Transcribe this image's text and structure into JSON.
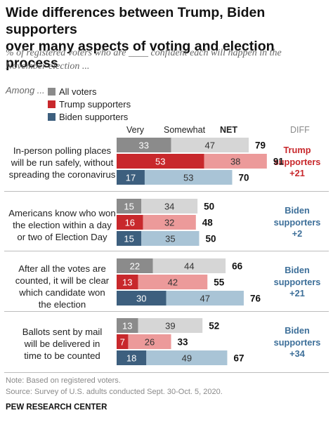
{
  "title": "Wide differences between Trump, Biden supporters\nover many aspects of voting and election process",
  "subtitle": "% of registered voters who are ____ confident each will happen in the\nNovember election ...",
  "legend": {
    "prefix": "Among ...",
    "items": [
      {
        "label": "All voters",
        "color": "#8b8b8b"
      },
      {
        "label": "Trump supporters",
        "color": "#c8282c"
      },
      {
        "label": "Biden supporters",
        "color": "#3d5f7e"
      }
    ]
  },
  "columns": {
    "very": "Very",
    "somewhat": "Somewhat",
    "net": "NET",
    "diff": "DIFF"
  },
  "colors": {
    "all_very": "#8b8b8b",
    "all_somewhat": "#d6d6d6",
    "trump_very": "#c8282c",
    "trump_somewhat": "#ec9a9a",
    "biden_very": "#3d5f7e",
    "biden_somewhat": "#a9c4d6",
    "trump_diff": "#c8282c",
    "biden_diff": "#3d6f99"
  },
  "chart_data": {
    "type": "bar",
    "stacked": true,
    "orientation": "horizontal",
    "value_unit": "%",
    "series": [
      {
        "name": "Very",
        "group_values": {
          "All voters": [
            33,
            15,
            22,
            13
          ],
          "Trump supporters": [
            53,
            16,
            13,
            7
          ],
          "Biden supporters": [
            17,
            15,
            30,
            18
          ]
        }
      },
      {
        "name": "Somewhat",
        "group_values": {
          "All voters": [
            47,
            34,
            44,
            39
          ],
          "Trump supporters": [
            38,
            32,
            42,
            26
          ],
          "Biden supporters": [
            53,
            35,
            47,
            49
          ]
        }
      }
    ],
    "groups": [
      "All voters",
      "Trump supporters",
      "Biden supporters"
    ],
    "items": [
      {
        "label": "In-person polling places\nwill be run safely, without\nspreading the coronavirus",
        "rows": [
          {
            "group": "All voters",
            "very": 33,
            "somewhat": 47,
            "net": 79
          },
          {
            "group": "Trump supporters",
            "very": 53,
            "somewhat": 38,
            "net": 91
          },
          {
            "group": "Biden supporters",
            "very": 17,
            "somewhat": 53,
            "net": 70
          }
        ],
        "diff": {
          "label": "Trump\nsupporters\n+21",
          "party": "trump"
        }
      },
      {
        "label": "Americans know who won\nthe election within a day\nor two of Election Day",
        "rows": [
          {
            "group": "All voters",
            "very": 15,
            "somewhat": 34,
            "net": 50
          },
          {
            "group": "Trump supporters",
            "very": 16,
            "somewhat": 32,
            "net": 48
          },
          {
            "group": "Biden supporters",
            "very": 15,
            "somewhat": 35,
            "net": 50
          }
        ],
        "diff": {
          "label": "Biden\nsupporters\n+2",
          "party": "biden"
        }
      },
      {
        "label": "After all the votes are\ncounted, it will be clear\nwhich candidate won\nthe election",
        "rows": [
          {
            "group": "All voters",
            "very": 22,
            "somewhat": 44,
            "net": 66
          },
          {
            "group": "Trump supporters",
            "very": 13,
            "somewhat": 42,
            "net": 55
          },
          {
            "group": "Biden supporters",
            "very": 30,
            "somewhat": 47,
            "net": 76
          }
        ],
        "diff": {
          "label": "Biden\nsupporters\n+21",
          "party": "biden"
        }
      },
      {
        "label": "Ballots sent by mail\nwill be delivered in\ntime to be counted",
        "rows": [
          {
            "group": "All voters",
            "very": 13,
            "somewhat": 39,
            "net": 52
          },
          {
            "group": "Trump supporters",
            "very": 7,
            "somewhat": 26,
            "net": 33
          },
          {
            "group": "Biden supporters",
            "very": 18,
            "somewhat": 49,
            "net": 67
          }
        ],
        "diff": {
          "label": "Biden\nsupporters\n+34",
          "party": "biden"
        }
      }
    ]
  },
  "footer": {
    "note": "Note: Based on registered voters.",
    "source": "Source: Survey of U.S. adults conducted Sept. 30-Oct. 5, 2020.",
    "brand": "PEW RESEARCH CENTER"
  }
}
